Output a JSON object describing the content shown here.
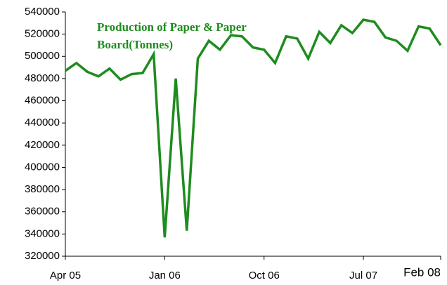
{
  "chart_data": {
    "type": "line",
    "title": [
      "Production of Paper & Paper",
      "Board(Tonnes)"
    ],
    "categories": [
      "Apr 05",
      null,
      null,
      null,
      null,
      null,
      null,
      null,
      null,
      "Jan 06",
      null,
      null,
      null,
      null,
      null,
      null,
      null,
      null,
      "Oct 06",
      null,
      null,
      null,
      null,
      null,
      null,
      null,
      null,
      "Jul 07",
      null,
      null,
      null,
      null,
      null,
      null,
      "Feb 08"
    ],
    "series": [
      {
        "name": "Production of Paper & Paper Board(Tonnes)",
        "color": "#1e8c1e",
        "values": [
          487000,
          494000,
          486000,
          482000,
          489000,
          479000,
          484000,
          485000,
          502000,
          337000,
          480000,
          343000,
          498000,
          514000,
          506000,
          519000,
          518000,
          508000,
          506000,
          494000,
          518000,
          516000,
          498000,
          522000,
          512000,
          528000,
          521000,
          533000,
          531000,
          517000,
          514000,
          505000,
          527000,
          525000,
          510000
        ]
      }
    ],
    "ylim": [
      320000,
      540000
    ],
    "yticks": [
      320000,
      340000,
      360000,
      380000,
      400000,
      420000,
      440000,
      460000,
      480000,
      500000,
      520000,
      540000
    ],
    "grid": false
  }
}
